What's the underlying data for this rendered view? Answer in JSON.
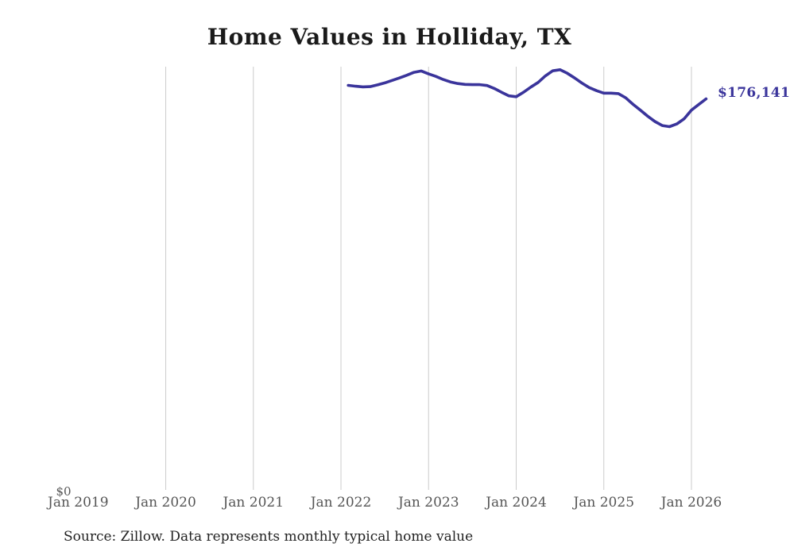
{
  "title": "Home Values in Holliday, TX",
  "source_note": "Source: Zillow. Data represents monthly typical home value",
  "end_label": "$176,141",
  "colors": {
    "background": "#ffffff",
    "line": "#3a349b",
    "grid": "#cccccc",
    "tick_text": "#555555",
    "title_text": "#1a1a1a",
    "source_text": "#222222"
  },
  "chart_data": {
    "type": "line",
    "title": "Home Values in Holliday, TX",
    "x_ticks": [
      "Jan 2019",
      "Jan 2020",
      "Jan 2021",
      "Jan 2022",
      "Jan 2023",
      "Jan 2024",
      "Jan 2025",
      "Jan 2026"
    ],
    "gridlines": "vertical gridlines at Jan 2020 through Jan 2026 only; no horizontal gridlines; no axis lines",
    "y_zero_label": "$0",
    "ylim": [
      0,
      190500
    ],
    "legend": "none",
    "end_label": "$176,141",
    "last_value": 176141,
    "series": [
      {
        "name": "Typical home value",
        "start_month": "Feb 2022",
        "end_month": "Mar 2026",
        "monthly_values": [
          182200,
          181800,
          181500,
          181600,
          182400,
          183300,
          184400,
          185500,
          186700,
          188000,
          188600,
          187300,
          186200,
          184800,
          183700,
          183000,
          182600,
          182500,
          182500,
          182100,
          180800,
          179100,
          177500,
          177100,
          179100,
          181400,
          183500,
          186400,
          188700,
          189200,
          187600,
          185500,
          183200,
          181200,
          179800,
          178700,
          178700,
          178500,
          176600,
          173700,
          171100,
          168400,
          166000,
          164200,
          163700,
          164900,
          167200,
          171100,
          173600,
          176141
        ]
      }
    ]
  }
}
